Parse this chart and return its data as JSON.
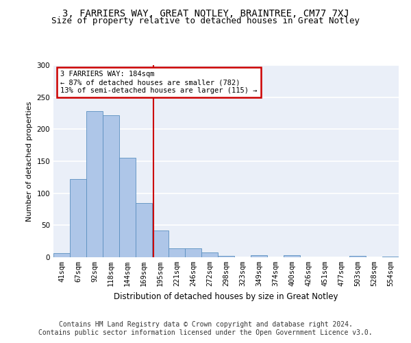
{
  "title": "3, FARRIERS WAY, GREAT NOTLEY, BRAINTREE, CM77 7XJ",
  "subtitle": "Size of property relative to detached houses in Great Notley",
  "xlabel": "Distribution of detached houses by size in Great Notley",
  "ylabel": "Number of detached properties",
  "categories": [
    "41sqm",
    "67sqm",
    "92sqm",
    "118sqm",
    "144sqm",
    "169sqm",
    "195sqm",
    "221sqm",
    "246sqm",
    "272sqm",
    "298sqm",
    "323sqm",
    "349sqm",
    "374sqm",
    "400sqm",
    "426sqm",
    "451sqm",
    "477sqm",
    "503sqm",
    "528sqm",
    "554sqm"
  ],
  "values": [
    6,
    122,
    228,
    222,
    155,
    85,
    42,
    14,
    14,
    7,
    2,
    0,
    3,
    0,
    3,
    0,
    0,
    0,
    2,
    0,
    1
  ],
  "bar_color": "#aec6e8",
  "bar_edge_color": "#5a8fc0",
  "vline_color": "#cc0000",
  "annotation_box_text": "3 FARRIERS WAY: 184sqm\n← 87% of detached houses are smaller (782)\n13% of semi-detached houses are larger (115) →",
  "annotation_box_color": "#ffffff",
  "annotation_box_edge_color": "#cc0000",
  "ylim": [
    0,
    300
  ],
  "yticks": [
    0,
    50,
    100,
    150,
    200,
    250,
    300
  ],
  "background_color": "#eaeff8",
  "footer_text": "Contains HM Land Registry data © Crown copyright and database right 2024.\nContains public sector information licensed under the Open Government Licence v3.0.",
  "title_fontsize": 10,
  "subtitle_fontsize": 9,
  "xlabel_fontsize": 8.5,
  "ylabel_fontsize": 8,
  "footer_fontsize": 7,
  "tick_fontsize": 7.5
}
